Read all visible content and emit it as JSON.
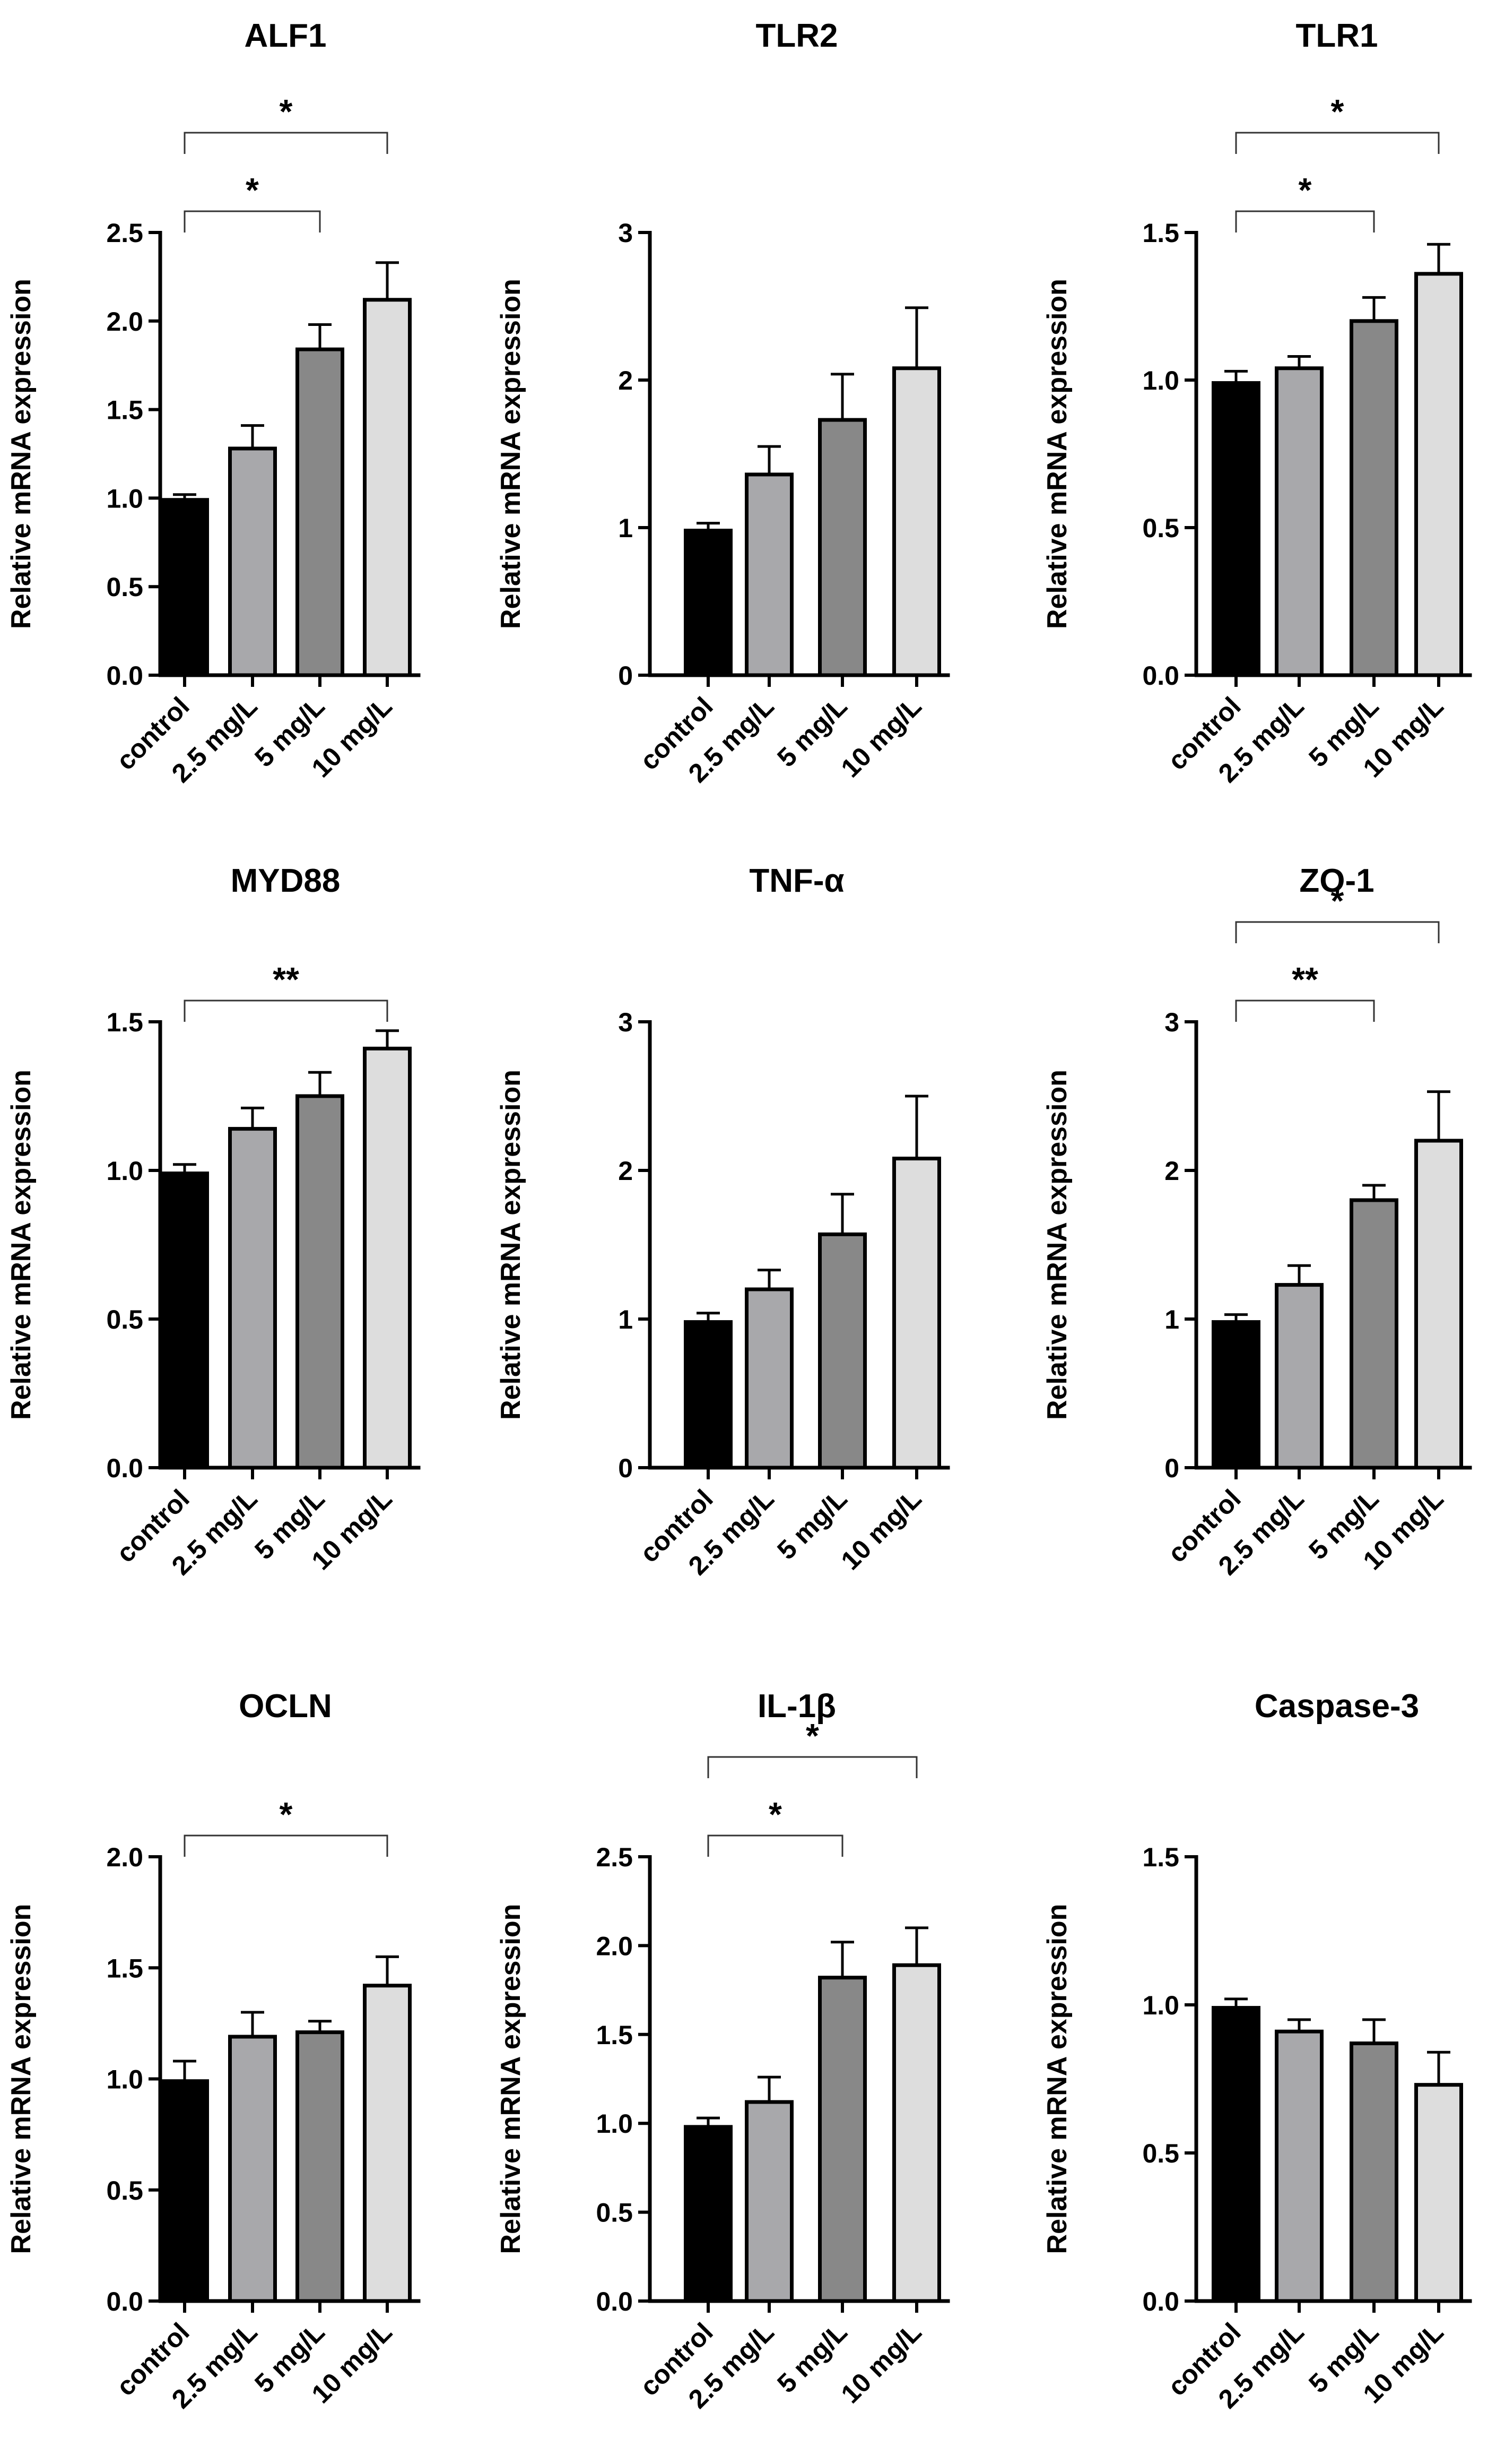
{
  "figure": {
    "x_axis_label": "",
    "y_axis_label": "Relative mRNA expression"
  },
  "chart_data": [
    {
      "type": "bar",
      "title": "ALF1",
      "ylabel": "Relative mRNA expression",
      "categories": [
        "control",
        "2.5 mg/L",
        "5 mg/L",
        "10 mg/L"
      ],
      "values": [
        0.99,
        1.28,
        1.84,
        2.12
      ],
      "errors": [
        0.03,
        0.13,
        0.14,
        0.21
      ],
      "ylim": [
        0,
        2.5
      ],
      "yticks": [
        "0.0",
        "0.5",
        "1.0",
        "1.5",
        "2.0",
        "2.5"
      ],
      "ytick_values": [
        0,
        0.5,
        1,
        1.5,
        2,
        2.5
      ],
      "significance": [
        {
          "from": 0,
          "to": 3,
          "label": "*",
          "level": 2
        },
        {
          "from": 0,
          "to": 2,
          "label": "*",
          "level": 1
        }
      ]
    },
    {
      "type": "bar",
      "title": "TLR2",
      "ylabel": "Relative mRNA expression",
      "categories": [
        "control",
        "2.5 mg/L",
        "5 mg/L",
        "10 mg/L"
      ],
      "values": [
        0.98,
        1.36,
        1.73,
        2.08
      ],
      "errors": [
        0.05,
        0.19,
        0.31,
        0.41
      ],
      "ylim": [
        0,
        3
      ],
      "yticks": [
        "0",
        "1",
        "2",
        "3"
      ],
      "ytick_values": [
        0,
        1,
        2,
        3
      ],
      "significance": []
    },
    {
      "type": "bar",
      "title": "TLR1",
      "ylabel": "Relative mRNA expression",
      "categories": [
        "control",
        "2.5 mg/L",
        "5 mg/L",
        "10 mg/L"
      ],
      "values": [
        0.99,
        1.04,
        1.2,
        1.36
      ],
      "errors": [
        0.04,
        0.04,
        0.08,
        0.1
      ],
      "ylim": [
        0,
        1.5
      ],
      "yticks": [
        "0.0",
        "0.5",
        "1.0",
        "1.5"
      ],
      "ytick_values": [
        0,
        0.5,
        1,
        1.5
      ],
      "significance": [
        {
          "from": 0,
          "to": 3,
          "label": "*",
          "level": 2
        },
        {
          "from": 0,
          "to": 2,
          "label": "*",
          "level": 1
        }
      ]
    },
    {
      "type": "bar",
      "title": "MYD88",
      "ylabel": "Relative mRNA expression",
      "categories": [
        "control",
        "2.5 mg/L",
        "5 mg/L",
        "10 mg/L"
      ],
      "values": [
        0.99,
        1.14,
        1.25,
        1.41
      ],
      "errors": [
        0.03,
        0.07,
        0.08,
        0.06
      ],
      "ylim": [
        0,
        1.5
      ],
      "yticks": [
        "0.0",
        "0.5",
        "1.0",
        "1.5"
      ],
      "ytick_values": [
        0,
        0.5,
        1,
        1.5
      ],
      "significance": [
        {
          "from": 0,
          "to": 3,
          "label": "**",
          "level": 1
        }
      ]
    },
    {
      "type": "bar",
      "title": "TNF-α",
      "ylabel": "Relative mRNA expression",
      "categories": [
        "control",
        "2.5 mg/L",
        "5 mg/L",
        "10 mg/L"
      ],
      "values": [
        0.98,
        1.2,
        1.57,
        2.08
      ],
      "errors": [
        0.06,
        0.13,
        0.27,
        0.42
      ],
      "ylim": [
        0,
        3
      ],
      "yticks": [
        "0",
        "1",
        "2",
        "3"
      ],
      "ytick_values": [
        0,
        1,
        2,
        3
      ],
      "significance": []
    },
    {
      "type": "bar",
      "title": "ZO-1",
      "ylabel": "Relative mRNA expression",
      "categories": [
        "control",
        "2.5 mg/L",
        "5 mg/L",
        "10 mg/L"
      ],
      "values": [
        0.98,
        1.23,
        1.8,
        2.2
      ],
      "errors": [
        0.05,
        0.13,
        0.1,
        0.33
      ],
      "ylim": [
        0,
        3
      ],
      "yticks": [
        "0",
        "1",
        "2",
        "3"
      ],
      "ytick_values": [
        0,
        1,
        2,
        3
      ],
      "significance": [
        {
          "from": 0,
          "to": 3,
          "label": "*",
          "level": 2
        },
        {
          "from": 0,
          "to": 2,
          "label": "**",
          "level": 1
        }
      ]
    },
    {
      "type": "bar",
      "title": "OCLN",
      "ylabel": "Relative mRNA expression",
      "categories": [
        "control",
        "2.5 mg/L",
        "5 mg/L",
        "10 mg/L"
      ],
      "values": [
        0.99,
        1.19,
        1.21,
        1.42
      ],
      "errors": [
        0.09,
        0.11,
        0.05,
        0.13
      ],
      "ylim": [
        0,
        2
      ],
      "yticks": [
        "0.0",
        "0.5",
        "1.0",
        "1.5",
        "2.0"
      ],
      "ytick_values": [
        0,
        0.5,
        1,
        1.5,
        2
      ],
      "significance": [
        {
          "from": 0,
          "to": 3,
          "label": "*",
          "level": 1
        }
      ]
    },
    {
      "type": "bar",
      "title": "IL-1β",
      "ylabel": "Relative mRNA expression",
      "categories": [
        "control",
        "2.5 mg/L",
        "5 mg/L",
        "10 mg/L"
      ],
      "values": [
        0.98,
        1.12,
        1.82,
        1.89
      ],
      "errors": [
        0.05,
        0.14,
        0.2,
        0.21
      ],
      "ylim": [
        0,
        2.5
      ],
      "yticks": [
        "0.0",
        "0.5",
        "1.0",
        "1.5",
        "2.0",
        "2.5"
      ],
      "ytick_values": [
        0,
        0.5,
        1,
        1.5,
        2,
        2.5
      ],
      "significance": [
        {
          "from": 0,
          "to": 3,
          "label": "*",
          "level": 2
        },
        {
          "from": 0,
          "to": 2,
          "label": "*",
          "level": 1
        }
      ]
    },
    {
      "type": "bar",
      "title": "Caspase-3",
      "ylabel": "Relative mRNA expression",
      "categories": [
        "control",
        "2.5 mg/L",
        "5 mg/L",
        "10 mg/L"
      ],
      "values": [
        0.99,
        0.91,
        0.87,
        0.73
      ],
      "errors": [
        0.03,
        0.04,
        0.08,
        0.11
      ],
      "ylim": [
        0,
        1.5
      ],
      "yticks": [
        "0.0",
        "0.5",
        "1.0",
        "1.5"
      ],
      "ytick_values": [
        0,
        0.5,
        1,
        1.5
      ],
      "significance": []
    }
  ],
  "colors": {
    "bars": [
      "#000000",
      "#a8a8ab",
      "#888888",
      "#dddddd"
    ],
    "stroke": "#000000"
  }
}
